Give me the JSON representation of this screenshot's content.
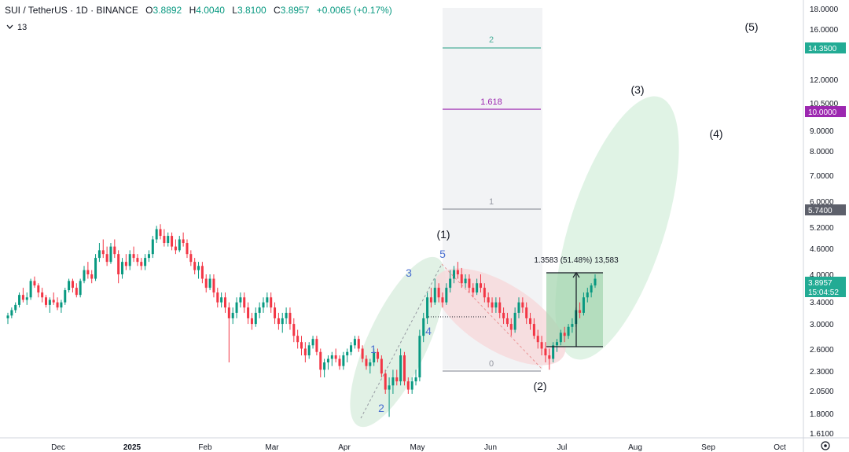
{
  "header": {
    "symbol": "SUI / TetherUS · 1D · BINANCE",
    "o_label": "O",
    "o": "3.8892",
    "h_label": "H",
    "h": "4.0040",
    "l_label": "L",
    "l": "3.8100",
    "c_label": "C",
    "c": "3.8957",
    "change": "+0.0065 (+0.17%)",
    "volume_toggle": "13",
    "colors": {
      "up": "#089981",
      "down": "#f23645"
    }
  },
  "chart_data": {
    "type": "candlestick",
    "title": "SUI / TetherUS · 1D · BINANCE",
    "y_scale": "log",
    "y_ticks": [
      "18.0000",
      "16.0000",
      "12.0000",
      "10.5000",
      "9.0000",
      "8.0000",
      "7.0000",
      "6.0000",
      "5.2000",
      "4.6000",
      "4.0000",
      "3.4000",
      "3.0000",
      "2.6000",
      "2.3000",
      "2.0500",
      "1.8000",
      "1.6100"
    ],
    "x_ticks": [
      "Dec",
      "2025",
      "Feb",
      "Mar",
      "Apr",
      "May",
      "Jun",
      "Jul",
      "Aug",
      "Sep",
      "Oct"
    ],
    "price_badges": [
      {
        "label": "14.3500",
        "color": "#22ab94"
      },
      {
        "label": "10.0000",
        "color": "#9c27b0"
      },
      {
        "label": "5.7400",
        "color": "#5d606b"
      },
      {
        "label": "3.8957",
        "sub": "15:04:52",
        "color": "#22ab94"
      }
    ],
    "fib_levels": [
      {
        "label": "2",
        "color": "#4caf9a"
      },
      {
        "label": "1.618",
        "color": "#9c27b0"
      },
      {
        "label": "1",
        "color": "#9598a1"
      },
      {
        "label": "0",
        "color": "#9598a1"
      }
    ],
    "wave_labels": [
      "(1)",
      "(2)",
      "(3)",
      "(4)",
      "(5)"
    ],
    "subwave_labels": [
      "1",
      "2",
      "3",
      "4",
      "5"
    ],
    "measure_label": "1.3583 (51.48%) 13,583",
    "candles": [
      [
        3.1,
        3.2,
        3.0,
        3.15
      ],
      [
        3.15,
        3.3,
        3.1,
        3.25
      ],
      [
        3.25,
        3.4,
        3.2,
        3.35
      ],
      [
        3.35,
        3.6,
        3.3,
        3.55
      ],
      [
        3.55,
        3.7,
        3.4,
        3.45
      ],
      [
        3.45,
        3.6,
        3.35,
        3.5
      ],
      [
        3.5,
        3.9,
        3.45,
        3.85
      ],
      [
        3.85,
        3.95,
        3.7,
        3.75
      ],
      [
        3.75,
        3.8,
        3.5,
        3.6
      ],
      [
        3.6,
        3.7,
        3.4,
        3.5
      ],
      [
        3.5,
        3.55,
        3.3,
        3.35
      ],
      [
        3.35,
        3.5,
        3.2,
        3.45
      ],
      [
        3.45,
        3.6,
        3.35,
        3.4
      ],
      [
        3.4,
        3.5,
        3.25,
        3.3
      ],
      [
        3.3,
        3.45,
        3.2,
        3.4
      ],
      [
        3.4,
        3.7,
        3.35,
        3.65
      ],
      [
        3.65,
        3.9,
        3.6,
        3.85
      ],
      [
        3.85,
        3.9,
        3.6,
        3.7
      ],
      [
        3.7,
        3.8,
        3.5,
        3.55
      ],
      [
        3.55,
        3.9,
        3.5,
        3.85
      ],
      [
        3.85,
        4.2,
        3.8,
        4.1
      ],
      [
        4.1,
        4.3,
        3.9,
        4.0
      ],
      [
        4.0,
        4.1,
        3.8,
        3.9
      ],
      [
        3.9,
        4.5,
        3.85,
        4.4
      ],
      [
        4.4,
        4.8,
        4.3,
        4.6
      ],
      [
        4.6,
        4.9,
        4.4,
        4.5
      ],
      [
        4.5,
        4.7,
        4.2,
        4.3
      ],
      [
        4.3,
        4.8,
        4.25,
        4.7
      ],
      [
        4.7,
        4.9,
        4.4,
        4.5
      ],
      [
        4.5,
        4.6,
        3.8,
        4.0
      ],
      [
        4.0,
        4.4,
        3.9,
        4.3
      ],
      [
        4.3,
        4.5,
        4.1,
        4.2
      ],
      [
        4.2,
        4.6,
        4.1,
        4.5
      ],
      [
        4.5,
        4.7,
        4.3,
        4.4
      ],
      [
        4.4,
        4.5,
        4.2,
        4.3
      ],
      [
        4.3,
        4.4,
        4.1,
        4.2
      ],
      [
        4.2,
        4.5,
        4.1,
        4.4
      ],
      [
        4.4,
        4.6,
        4.3,
        4.5
      ],
      [
        4.5,
        5.0,
        4.4,
        4.9
      ],
      [
        4.9,
        5.3,
        4.8,
        5.2
      ],
      [
        5.2,
        5.35,
        4.9,
        5.0
      ],
      [
        5.0,
        5.2,
        4.7,
        4.8
      ],
      [
        4.8,
        5.1,
        4.7,
        5.0
      ],
      [
        5.0,
        5.1,
        4.6,
        4.7
      ],
      [
        4.7,
        4.9,
        4.5,
        4.6
      ],
      [
        4.6,
        5.0,
        4.55,
        4.9
      ],
      [
        4.9,
        5.1,
        4.7,
        4.8
      ],
      [
        4.8,
        4.9,
        4.4,
        4.5
      ],
      [
        4.5,
        4.6,
        4.2,
        4.3
      ],
      [
        4.3,
        4.4,
        4.0,
        4.1
      ],
      [
        4.1,
        4.3,
        3.9,
        4.2
      ],
      [
        4.2,
        4.3,
        3.8,
        3.9
      ],
      [
        3.9,
        4.0,
        3.6,
        3.7
      ],
      [
        3.7,
        4.0,
        3.65,
        3.9
      ],
      [
        3.9,
        4.0,
        3.5,
        3.6
      ],
      [
        3.6,
        3.7,
        3.3,
        3.4
      ],
      [
        3.4,
        3.6,
        3.3,
        3.5
      ],
      [
        3.5,
        3.6,
        3.2,
        3.3
      ],
      [
        3.3,
        3.4,
        2.4,
        3.1
      ],
      [
        3.1,
        3.3,
        3.0,
        3.2
      ],
      [
        3.2,
        3.5,
        3.1,
        3.4
      ],
      [
        3.4,
        3.6,
        3.3,
        3.5
      ],
      [
        3.5,
        3.6,
        3.2,
        3.3
      ],
      [
        3.3,
        3.4,
        3.0,
        3.1
      ],
      [
        3.1,
        3.2,
        2.9,
        3.0
      ],
      [
        3.0,
        3.3,
        2.95,
        3.2
      ],
      [
        3.2,
        3.4,
        3.1,
        3.3
      ],
      [
        3.3,
        3.5,
        3.2,
        3.4
      ],
      [
        3.4,
        3.6,
        3.3,
        3.5
      ],
      [
        3.5,
        3.6,
        3.2,
        3.3
      ],
      [
        3.3,
        3.4,
        3.0,
        3.1
      ],
      [
        3.1,
        3.2,
        2.9,
        3.0
      ],
      [
        3.0,
        3.2,
        2.85,
        3.1
      ],
      [
        3.1,
        3.3,
        3.0,
        3.2
      ],
      [
        3.2,
        3.3,
        2.9,
        3.0
      ],
      [
        3.0,
        3.1,
        2.7,
        2.8
      ],
      [
        2.8,
        2.9,
        2.6,
        2.7
      ],
      [
        2.7,
        2.8,
        2.5,
        2.6
      ],
      [
        2.6,
        2.7,
        2.4,
        2.5
      ],
      [
        2.5,
        2.7,
        2.45,
        2.65
      ],
      [
        2.65,
        2.8,
        2.6,
        2.75
      ],
      [
        2.75,
        2.8,
        2.5,
        2.55
      ],
      [
        2.55,
        2.6,
        2.2,
        2.3
      ],
      [
        2.3,
        2.45,
        2.2,
        2.4
      ],
      [
        2.4,
        2.5,
        2.3,
        2.45
      ],
      [
        2.45,
        2.55,
        2.35,
        2.5
      ],
      [
        2.5,
        2.6,
        2.4,
        2.45
      ],
      [
        2.45,
        2.5,
        2.3,
        2.35
      ],
      [
        2.35,
        2.55,
        2.3,
        2.5
      ],
      [
        2.5,
        2.6,
        2.4,
        2.55
      ],
      [
        2.55,
        2.7,
        2.5,
        2.65
      ],
      [
        2.65,
        2.8,
        2.6,
        2.75
      ],
      [
        2.75,
        2.8,
        2.55,
        2.6
      ],
      [
        2.6,
        2.65,
        2.4,
        2.45
      ],
      [
        2.45,
        2.5,
        2.3,
        2.35
      ],
      [
        2.35,
        2.45,
        2.25,
        2.4
      ],
      [
        2.4,
        2.6,
        2.35,
        2.55
      ],
      [
        2.55,
        2.6,
        2.4,
        2.45
      ],
      [
        2.45,
        2.5,
        2.2,
        2.25
      ],
      [
        2.25,
        2.3,
        2.0,
        2.05
      ],
      [
        2.05,
        2.2,
        1.75,
        2.1
      ],
      [
        2.1,
        2.3,
        2.0,
        2.2
      ],
      [
        2.2,
        2.3,
        2.1,
        2.15
      ],
      [
        2.15,
        2.6,
        2.1,
        2.5
      ],
      [
        2.5,
        2.55,
        2.1,
        2.15
      ],
      [
        2.15,
        2.2,
        2.0,
        2.05
      ],
      [
        2.05,
        2.2,
        2.0,
        2.15
      ],
      [
        2.15,
        2.3,
        2.1,
        2.2
      ],
      [
        2.2,
        2.9,
        2.15,
        2.8
      ],
      [
        2.8,
        3.2,
        2.7,
        3.1
      ],
      [
        3.1,
        3.6,
        3.0,
        3.5
      ],
      [
        3.5,
        3.7,
        3.3,
        3.4
      ],
      [
        3.4,
        3.9,
        3.35,
        3.7
      ],
      [
        3.7,
        3.8,
        3.4,
        3.5
      ],
      [
        3.5,
        3.6,
        3.3,
        3.4
      ],
      [
        3.4,
        3.8,
        3.35,
        3.7
      ],
      [
        3.7,
        4.1,
        3.6,
        3.9
      ],
      [
        3.9,
        4.2,
        3.8,
        4.1
      ],
      [
        4.1,
        4.3,
        3.9,
        4.0
      ],
      [
        4.0,
        4.15,
        3.7,
        3.8
      ],
      [
        3.8,
        4.0,
        3.7,
        3.9
      ],
      [
        3.9,
        4.0,
        3.6,
        3.7
      ],
      [
        3.7,
        3.8,
        3.5,
        3.6
      ],
      [
        3.6,
        3.9,
        3.55,
        3.8
      ],
      [
        3.8,
        4.0,
        3.6,
        3.7
      ],
      [
        3.7,
        3.8,
        3.4,
        3.5
      ],
      [
        3.5,
        3.6,
        3.3,
        3.4
      ],
      [
        3.4,
        3.5,
        3.2,
        3.3
      ],
      [
        3.3,
        3.5,
        3.2,
        3.4
      ],
      [
        3.4,
        3.5,
        3.1,
        3.2
      ],
      [
        3.2,
        3.3,
        3.0,
        3.1
      ],
      [
        3.1,
        3.2,
        2.95,
        3.0
      ],
      [
        3.0,
        3.1,
        2.8,
        2.9
      ],
      [
        2.9,
        3.3,
        2.85,
        3.2
      ],
      [
        3.2,
        3.5,
        3.1,
        3.4
      ],
      [
        3.4,
        3.5,
        3.2,
        3.3
      ],
      [
        3.3,
        3.4,
        3.0,
        3.1
      ],
      [
        3.1,
        3.2,
        2.9,
        3.0
      ],
      [
        3.0,
        3.1,
        2.75,
        2.8
      ],
      [
        2.8,
        2.9,
        2.6,
        2.7
      ],
      [
        2.7,
        2.8,
        2.5,
        2.6
      ],
      [
        2.6,
        2.7,
        2.4,
        2.5
      ],
      [
        2.5,
        2.6,
        2.3,
        2.45
      ],
      [
        2.45,
        2.7,
        2.4,
        2.65
      ],
      [
        2.65,
        2.75,
        2.55,
        2.7
      ],
      [
        2.7,
        2.9,
        2.65,
        2.85
      ],
      [
        2.85,
        2.95,
        2.7,
        2.8
      ],
      [
        2.8,
        3.0,
        2.75,
        2.95
      ],
      [
        2.95,
        3.1,
        2.85,
        3.0
      ],
      [
        3.0,
        3.3,
        2.95,
        3.25
      ],
      [
        3.25,
        3.4,
        3.1,
        3.2
      ],
      [
        3.2,
        3.6,
        3.15,
        3.5
      ],
      [
        3.5,
        3.7,
        3.4,
        3.6
      ],
      [
        3.6,
        3.8,
        3.5,
        3.75
      ],
      [
        3.75,
        4.0,
        3.7,
        3.9
      ]
    ]
  }
}
